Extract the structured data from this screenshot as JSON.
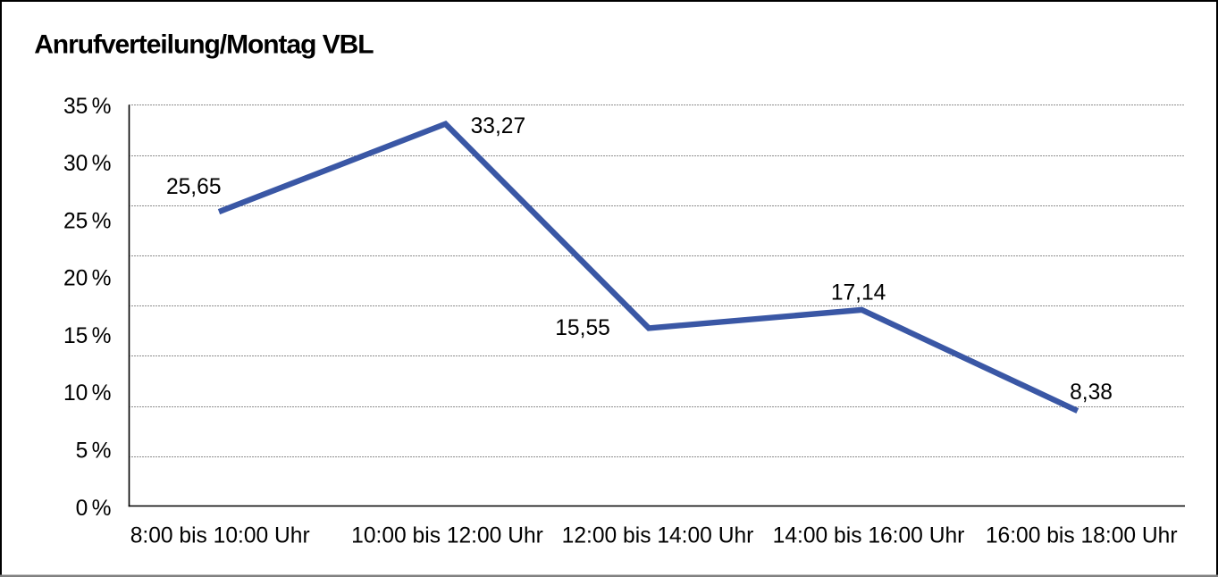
{
  "title": "Anrufverteilung/Montag VBL",
  "chart_data": {
    "type": "line",
    "title": "Anrufverteilung/Montag VBL",
    "categories": [
      "8:00 bis 10:00 Uhr",
      "10:00 bis 12:00 Uhr",
      "12:00 bis 14:00 Uhr",
      "14:00 bis 16:00 Uhr",
      "16:00 bis 18:00 Uhr"
    ],
    "values": [
      25.65,
      33.27,
      15.55,
      17.14,
      8.38
    ],
    "value_labels": [
      "25,65",
      "33,27",
      "15,55",
      "17,14",
      "8,38"
    ],
    "y_tick_labels": [
      "0 %",
      "5 %",
      "10 %",
      "15 %",
      "20 %",
      "25 %",
      "30 %",
      "35 %"
    ],
    "y_tick_values": [
      0,
      5,
      10,
      15,
      20,
      25,
      30,
      35
    ],
    "xlabel": "",
    "ylabel": "",
    "ylim": [
      0,
      35
    ],
    "gridlines": "dotted horizontal, 8 equal divisions",
    "legend": "none",
    "line_color": "#3a57a5",
    "grid_color": "#1c1c1c",
    "axis_color": "#000000",
    "text_color": "#000000",
    "border_color": "#000000",
    "bottom_edge_color": "#808080",
    "background_color": "#ffffff"
  }
}
